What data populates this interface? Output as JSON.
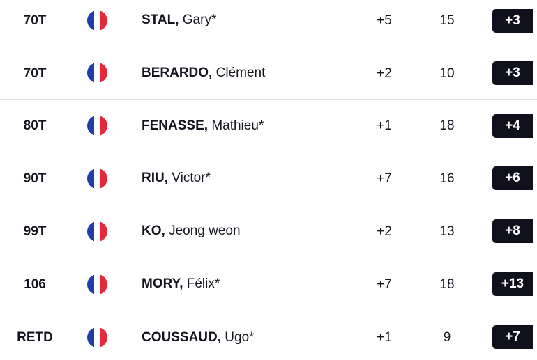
{
  "leaderboard": {
    "rows": [
      {
        "position": "70T",
        "last_name": "STAL,",
        "first_name": "Gary*",
        "today": "+5",
        "thru": "15",
        "total": "+3",
        "flag": "france-flag-icon"
      },
      {
        "position": "70T",
        "last_name": "BERARDO,",
        "first_name": "Clément",
        "today": "+2",
        "thru": "10",
        "total": "+3",
        "flag": "france-flag-icon"
      },
      {
        "position": "80T",
        "last_name": "FENASSE,",
        "first_name": "Mathieu*",
        "today": "+1",
        "thru": "18",
        "total": "+4",
        "flag": "france-flag-icon"
      },
      {
        "position": "90T",
        "last_name": "RIU,",
        "first_name": "Victor*",
        "today": "+7",
        "thru": "16",
        "total": "+6",
        "flag": "france-flag-icon"
      },
      {
        "position": "99T",
        "last_name": "KO,",
        "first_name": "Jeong weon",
        "today": "+2",
        "thru": "13",
        "total": "+8",
        "flag": "france-flag-icon"
      },
      {
        "position": "106",
        "last_name": "MORY,",
        "first_name": "Félix*",
        "today": "+7",
        "thru": "18",
        "total": "+13",
        "flag": "france-flag-icon"
      },
      {
        "position": "RETD",
        "last_name": "COUSSAUD,",
        "first_name": "Ugo*",
        "today": "+1",
        "thru": "9",
        "total": "+7",
        "flag": "france-flag-icon"
      }
    ]
  },
  "colors": {
    "total_badge_bg": "#10101c",
    "flag_blue": "#1f3ea8",
    "flag_red": "#e5283a"
  }
}
